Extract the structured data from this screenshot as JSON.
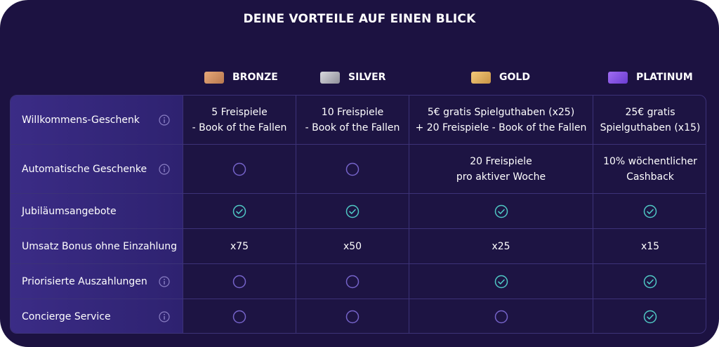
{
  "title": "DEINE VORTEILE AUF EINEN BLICK",
  "tiers": [
    {
      "name": "BRONZE",
      "color": "#d08f60"
    },
    {
      "name": "SILVER",
      "color": "#b5b5bd"
    },
    {
      "name": "GOLD",
      "color": "#e0ad5b"
    },
    {
      "name": "PLATINUM",
      "color": "#8a56e6"
    }
  ],
  "rows": [
    {
      "label": "Willkommens-Geschenk",
      "info": true,
      "cells": [
        {
          "type": "text",
          "text": "5 Freispiele\n- Book of the Fallen"
        },
        {
          "type": "text",
          "text": "10 Freispiele\n- Book of the Fallen"
        },
        {
          "type": "text",
          "text": "5€ gratis Spielguthaben (x25)\n+ 20 Freispiele - Book of the Fallen"
        },
        {
          "type": "text",
          "text": "25€ gratis\nSpielguthaben (x15)"
        }
      ]
    },
    {
      "label": "Automatische Geschenke",
      "info": true,
      "cells": [
        {
          "type": "empty"
        },
        {
          "type": "empty"
        },
        {
          "type": "text",
          "text": "20 Freispiele\npro aktiver Woche"
        },
        {
          "type": "text",
          "text": "10% wöchentlicher\nCashback"
        }
      ]
    },
    {
      "label": "Jubiläumsangebote",
      "info": false,
      "cells": [
        {
          "type": "check"
        },
        {
          "type": "check"
        },
        {
          "type": "check"
        },
        {
          "type": "check"
        }
      ]
    },
    {
      "label": "Umsatz Bonus ohne Einzahlung",
      "info": false,
      "cells": [
        {
          "type": "text",
          "text": "x75"
        },
        {
          "type": "text",
          "text": "x50"
        },
        {
          "type": "text",
          "text": "x25"
        },
        {
          "type": "text",
          "text": "x15"
        }
      ]
    },
    {
      "label": "Priorisierte Auszahlungen",
      "info": true,
      "cells": [
        {
          "type": "empty"
        },
        {
          "type": "empty"
        },
        {
          "type": "check"
        },
        {
          "type": "check"
        }
      ]
    },
    {
      "label": "Concierge Service",
      "info": true,
      "cells": [
        {
          "type": "empty"
        },
        {
          "type": "empty"
        },
        {
          "type": "empty"
        },
        {
          "type": "check"
        }
      ]
    }
  ],
  "colors": {
    "background": "#1c1241",
    "label_column": "#3b2c86",
    "grid": "#3c3278",
    "check": "#4fc7c4",
    "empty_circle": "#7563c9"
  }
}
